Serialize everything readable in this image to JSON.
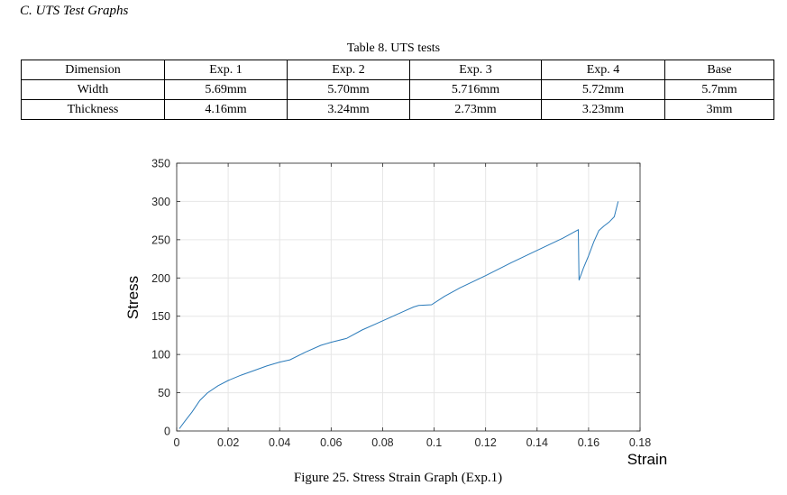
{
  "section_heading": "C.   UTS Test Graphs",
  "table": {
    "caption": "Table 8. UTS tests",
    "header": [
      "Dimension",
      "Exp. 1",
      "Exp. 2",
      "Exp. 3",
      "Exp. 4",
      "Base"
    ],
    "rows": [
      [
        "Width",
        "5.69mm",
        "5.70mm",
        "5.716mm",
        "5.72mm",
        "5.7mm"
      ],
      [
        "Thickness",
        "4.16mm",
        "3.24mm",
        "2.73mm",
        "3.23mm",
        "3mm"
      ]
    ]
  },
  "figure_caption": "Figure 25. Stress Strain Graph (Exp.1)",
  "chart_data": {
    "type": "line",
    "xlabel": "Strain",
    "ylabel": "Stress",
    "xlim": [
      0,
      0.18
    ],
    "ylim": [
      0,
      350
    ],
    "xticks": [
      "0",
      "0.02",
      "0.04",
      "0.06",
      "0.08",
      "0.1",
      "0.12",
      "0.14",
      "0.16",
      "0.18"
    ],
    "yticks": [
      "0",
      "50",
      "100",
      "150",
      "200",
      "250",
      "300",
      "350"
    ],
    "grid": true,
    "line_color": "#2b7bba",
    "series": [
      {
        "x": [
          0.001,
          0.003,
          0.006,
          0.009,
          0.012,
          0.016,
          0.02,
          0.025,
          0.03,
          0.035,
          0.04,
          0.044,
          0.05,
          0.056,
          0.06,
          0.066,
          0.072,
          0.078,
          0.084,
          0.088,
          0.092,
          0.094,
          0.099,
          0.104,
          0.11,
          0.12,
          0.13,
          0.14,
          0.15,
          0.156,
          0.1563,
          0.158,
          0.16,
          0.162,
          0.164,
          0.166,
          0.168,
          0.17,
          0.1715
        ],
        "y": [
          3,
          12,
          25,
          40,
          50,
          59,
          66,
          73,
          79,
          85,
          90,
          93,
          103,
          112,
          116,
          121,
          132,
          141,
          150,
          156,
          162,
          164,
          165,
          176,
          187,
          203,
          220,
          236,
          252,
          263,
          197,
          213,
          229,
          247,
          262,
          268,
          273,
          280,
          300
        ]
      }
    ]
  }
}
